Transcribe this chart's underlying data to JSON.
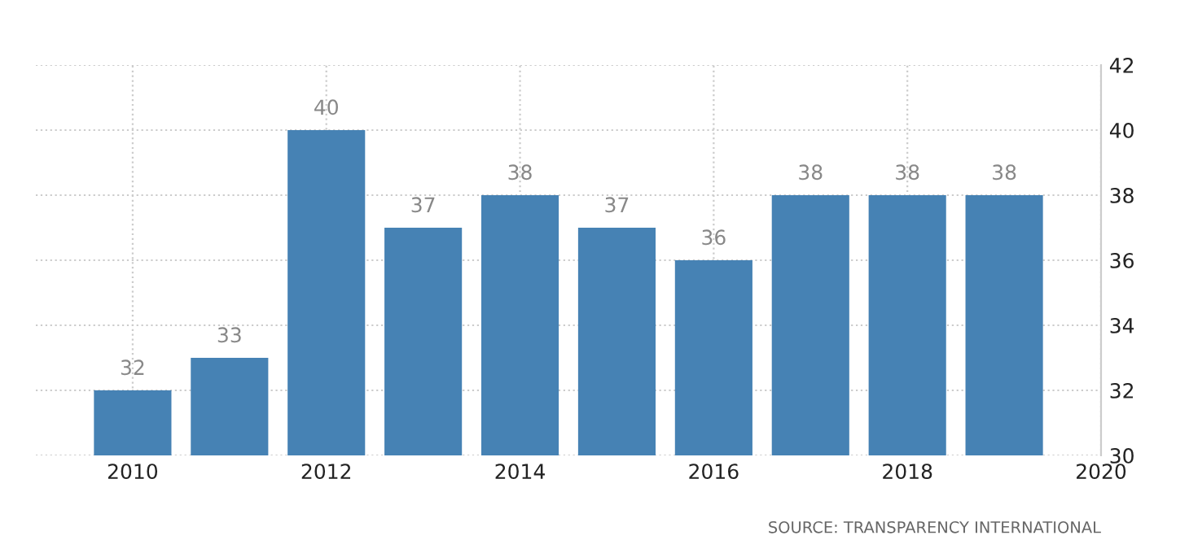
{
  "chart_data": {
    "type": "bar",
    "x": [
      2010,
      2011,
      2012,
      2013,
      2014,
      2015,
      2016,
      2017,
      2018,
      2019
    ],
    "values": [
      32,
      33,
      40,
      37,
      38,
      37,
      36,
      38,
      38,
      38
    ],
    "color": "#4682b4",
    "xlim": [
      2009,
      2020
    ],
    "xticks": [
      2010,
      2012,
      2014,
      2016,
      2018,
      2020
    ],
    "ylim": [
      30,
      42
    ],
    "yticks": [
      30,
      32,
      34,
      36,
      38,
      40,
      42
    ],
    "grid": true,
    "data_labels": true,
    "annotations": [
      "SOURCE: TRANSPARENCY INTERNATIONAL"
    ]
  }
}
